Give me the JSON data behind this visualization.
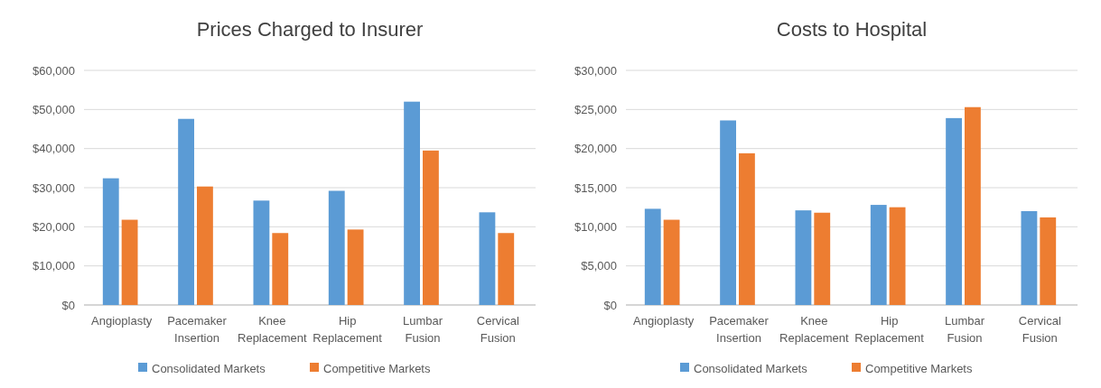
{
  "chart_data": [
    {
      "type": "bar",
      "title": "Prices Charged to Insurer",
      "categories": [
        "Angioplasty",
        "Pacemaker Insertion",
        "Knee Replacement",
        "Hip Replacement",
        "Lumbar Fusion",
        "Cervical Fusion"
      ],
      "series": [
        {
          "name": "Consolidated Markets",
          "color": "#5b9bd5",
          "values": [
            32400,
            47600,
            26700,
            29200,
            52000,
            23700
          ]
        },
        {
          "name": "Competitive Markets",
          "color": "#ed7d31",
          "values": [
            21800,
            30300,
            18400,
            19300,
            39500,
            18400
          ]
        }
      ],
      "ylim": [
        0,
        60000
      ],
      "yticks": [
        {
          "value": 0,
          "label": "$0"
        },
        {
          "value": 10000,
          "label": "$10,000"
        },
        {
          "value": 20000,
          "label": "$20,000"
        },
        {
          "value": 30000,
          "label": "$30,000"
        },
        {
          "value": 40000,
          "label": "$40,000"
        },
        {
          "value": 50000,
          "label": "$50,000"
        },
        {
          "value": 60000,
          "label": "$60,000"
        }
      ],
      "grid": "y",
      "legend": "bottom"
    },
    {
      "type": "bar",
      "title": "Costs to Hospital",
      "categories": [
        "Angioplasty",
        "Pacemaker Insertion",
        "Knee Replacement",
        "Hip Replacement",
        "Lumbar Fusion",
        "Cervical Fusion"
      ],
      "series": [
        {
          "name": "Consolidated Markets",
          "color": "#5b9bd5",
          "values": [
            12300,
            23600,
            12100,
            12800,
            23900,
            12000
          ]
        },
        {
          "name": "Competitive Markets",
          "color": "#ed7d31",
          "values": [
            10900,
            19400,
            11800,
            12500,
            25300,
            11200
          ]
        }
      ],
      "ylim": [
        0,
        30000
      ],
      "yticks": [
        {
          "value": 0,
          "label": "$0"
        },
        {
          "value": 5000,
          "label": "$5,000"
        },
        {
          "value": 10000,
          "label": "$10,000"
        },
        {
          "value": 15000,
          "label": "$15,000"
        },
        {
          "value": 20000,
          "label": "$20,000"
        },
        {
          "value": 25000,
          "label": "$25,000"
        },
        {
          "value": 30000,
          "label": "$30,000"
        }
      ],
      "grid": "y",
      "legend": "bottom"
    }
  ]
}
